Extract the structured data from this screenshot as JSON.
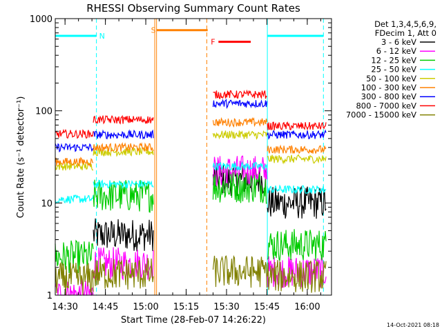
{
  "chart_data": {
    "type": "line",
    "title": "RHESSI Observing Summary Count Rates",
    "xlabel": "Start Time (28-Feb-07 14:26:22)",
    "ylabel": "Count Rate (s⁻¹ detector⁻¹)",
    "y_scale": "log",
    "ylim": [
      1,
      1000
    ],
    "xlim": [
      "14:26:22",
      "16:09:00"
    ],
    "x_ticks": [
      "14:30",
      "14:45",
      "15:00",
      "15:15",
      "15:30",
      "15:45",
      "16:00"
    ],
    "y_ticks": [
      "1",
      "10",
      "100",
      "1000"
    ],
    "legend_header": [
      "Det 1,3,4,5,6,9,",
      "FDecim 1, Att 0"
    ],
    "legend_position": "right",
    "timestamp": "14-Oct-2021 08:18",
    "segments": [
      {
        "start": "14:26:22",
        "end": "14:40:30",
        "label": ""
      },
      {
        "start": "14:40:30",
        "end": "15:02:50",
        "label": ""
      },
      {
        "start": "15:25:00",
        "end": "15:45:10",
        "label": ""
      },
      {
        "start": "15:45:10",
        "end": "16:07:00",
        "label": ""
      }
    ],
    "flags": [
      {
        "label": "N",
        "color": "#00ffff",
        "level": 650,
        "ranges": [
          [
            "14:26:22",
            "14:41:40"
          ],
          [
            "15:45:10",
            "16:06:00"
          ]
        ]
      },
      {
        "label": "S",
        "color": "#ff8000",
        "level": 750,
        "ranges": [
          [
            "15:04:00",
            "15:23:00"
          ]
        ]
      },
      {
        "label": "F",
        "color": "#ff0000",
        "level": 560,
        "ranges": [
          [
            "15:27:00",
            "15:39:00"
          ]
        ]
      }
    ],
    "vlines": [
      {
        "time": "14:41:40",
        "color": "#00ffff",
        "style": "dashed"
      },
      {
        "time": "15:03:20",
        "color": "#ff8000",
        "style": "solid"
      },
      {
        "time": "15:04:00",
        "color": "#ff8000",
        "style": "solid"
      },
      {
        "time": "15:22:40",
        "color": "#ff8000",
        "style": "dashed"
      },
      {
        "time": "15:45:10",
        "color": "#00ffff",
        "style": "solid"
      },
      {
        "time": "16:06:00",
        "color": "#00ffff",
        "style": "dashed"
      }
    ],
    "series": [
      {
        "name": "3 - 6 keV",
        "color": "#000000",
        "noise": "low",
        "values": [
          null,
          4.5,
          18,
          10
        ]
      },
      {
        "name": "6 - 12 keV",
        "color": "#ff00ff",
        "noise": "low",
        "values": [
          1.0,
          2.2,
          22,
          1.8
        ]
      },
      {
        "name": "12 - 25 keV",
        "color": "#00cc00",
        "noise": "low",
        "values": [
          2.6,
          12,
          15,
          3.5
        ]
      },
      {
        "name": "25 - 50 keV",
        "color": "#00ffff",
        "noise": "med",
        "values": [
          11,
          16,
          25,
          14
        ]
      },
      {
        "name": "50 - 100 keV",
        "color": "#cccc00",
        "noise": "med",
        "values": [
          25,
          36,
          55,
          30
        ]
      },
      {
        "name": "100 - 300 keV",
        "color": "#ff8000",
        "noise": "med",
        "values": [
          28,
          40,
          75,
          38
        ]
      },
      {
        "name": "300 - 800 keV",
        "color": "#0000ff",
        "noise": "med",
        "values": [
          40,
          55,
          120,
          55
        ]
      },
      {
        "name": "800 - 7000 keV",
        "color": "#ff0000",
        "noise": "med",
        "values": [
          56,
          80,
          150,
          68
        ]
      },
      {
        "name": "7000 - 15000 keV",
        "color": "#808000",
        "noise": "low",
        "values": [
          1.5,
          1.7,
          1.8,
          1.6
        ]
      }
    ]
  }
}
